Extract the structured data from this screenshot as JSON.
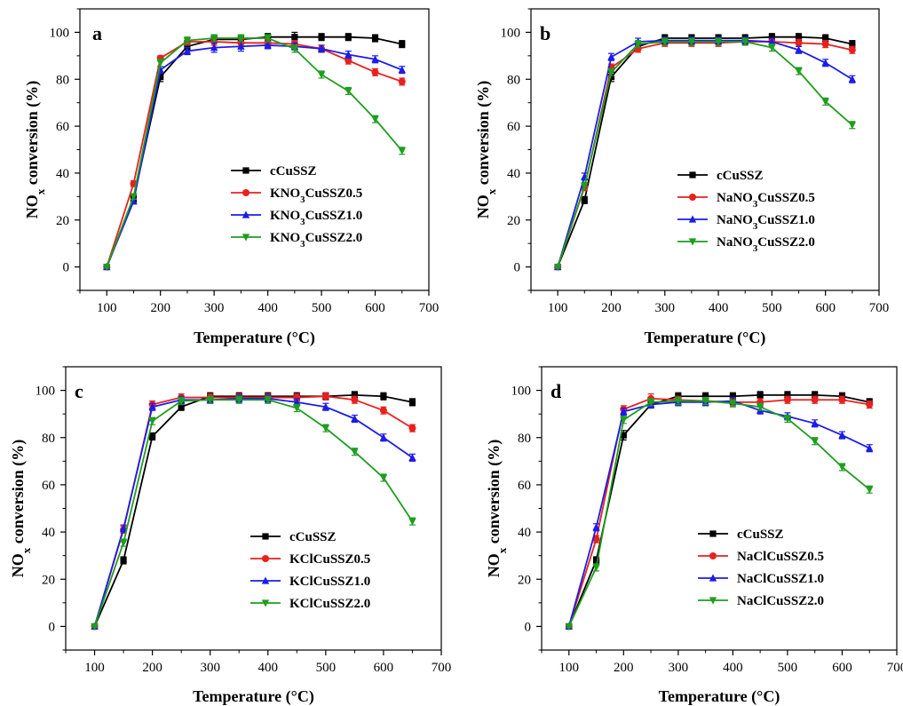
{
  "chart_data": [
    {
      "type": "line",
      "panel_label": "a",
      "xlabel": "Temperature (°C)",
      "ylabel": "NOx conversion (%)",
      "xlim": [
        50,
        700
      ],
      "ylim": [
        -10,
        110
      ],
      "x": [
        100,
        150,
        200,
        250,
        300,
        350,
        400,
        450,
        500,
        550,
        600,
        650
      ],
      "x_ticks": [
        100,
        200,
        300,
        400,
        500,
        600,
        700
      ],
      "y_ticks": [
        0,
        20,
        40,
        60,
        80,
        100
      ],
      "legend_position": "center-right",
      "series": [
        {
          "name": "cCuSSZ",
          "color": "#000000",
          "marker": "square",
          "values": [
            0,
            29,
            81,
            94,
            97,
            97,
            98,
            98,
            98,
            98,
            97.5,
            95
          ],
          "errors": [
            0.5,
            1.5,
            2,
            1.5,
            1.5,
            1.5,
            1.5,
            2,
            1.5,
            1.5,
            1.5,
            1.5
          ]
        },
        {
          "name": "KNO3CuSSZ0.5",
          "color": "#e8201e",
          "marker": "circle",
          "values": [
            0,
            35.5,
            89,
            96,
            96,
            95.5,
            95.5,
            95,
            93,
            88,
            83,
            79
          ],
          "errors": [
            0.5,
            1.2,
            1,
            1.5,
            1.5,
            1.5,
            1.5,
            1.5,
            1.5,
            1.5,
            1.5,
            1.5
          ]
        },
        {
          "name": "KNO3CuSSZ1.0",
          "color": "#1c1ce8",
          "marker": "triangle-up",
          "values": [
            0,
            28,
            84,
            92,
            93.5,
            94,
            94.5,
            94,
            93,
            90.5,
            88.5,
            84
          ],
          "errors": [
            0.5,
            1.2,
            1.5,
            1.5,
            2,
            2,
            1.5,
            1.5,
            1.5,
            1.5,
            1.5,
            1.5
          ]
        },
        {
          "name": "KNO3CuSSZ2.0",
          "color": "#1e9e1e",
          "marker": "triangle-down",
          "values": [
            0,
            30,
            87,
            96.5,
            97.5,
            97.5,
            97.5,
            93,
            82,
            75,
            63,
            49.5
          ],
          "errors": [
            0.5,
            1.2,
            1.5,
            1.5,
            1.5,
            1.5,
            1.5,
            1.5,
            1.5,
            1.5,
            1.5,
            1.5
          ]
        }
      ]
    },
    {
      "type": "line",
      "panel_label": "b",
      "xlabel": "Temperature (°C)",
      "ylabel": "NOx conversion (%)",
      "xlim": [
        50,
        700
      ],
      "ylim": [
        -10,
        110
      ],
      "x": [
        100,
        150,
        200,
        250,
        300,
        350,
        400,
        450,
        500,
        550,
        600,
        650
      ],
      "x_ticks": [
        100,
        200,
        300,
        400,
        500,
        600,
        700
      ],
      "y_ticks": [
        0,
        20,
        40,
        60,
        80,
        100
      ],
      "legend_position": "center-right",
      "series": [
        {
          "name": "cCuSSZ",
          "color": "#000000",
          "marker": "square",
          "values": [
            0,
            28.5,
            81,
            94,
            97.5,
            97.5,
            97.5,
            97.5,
            98,
            98,
            97.5,
            95
          ],
          "errors": [
            0.5,
            1.5,
            2,
            1.5,
            1.5,
            1.5,
            1.5,
            1.5,
            1.5,
            1.5,
            1.5,
            1.5
          ]
        },
        {
          "name": "NaNO3CuSSZ0.5",
          "color": "#e8201e",
          "marker": "circle",
          "values": [
            0,
            34,
            85,
            93,
            95.5,
            95.5,
            95.5,
            96,
            96,
            95.5,
            95,
            92.5
          ],
          "errors": [
            0.5,
            1.5,
            1.5,
            1.5,
            1.5,
            1.5,
            1.5,
            1.5,
            1.5,
            1.5,
            1.5,
            1.5
          ]
        },
        {
          "name": "NaNO3CuSSZ1.0",
          "color": "#1c1ce8",
          "marker": "triangle-up",
          "values": [
            0,
            38.5,
            89.5,
            96,
            96.5,
            96.5,
            96.5,
            96.5,
            96,
            92.5,
            87,
            80
          ],
          "errors": [
            0.5,
            1.5,
            1.5,
            1.5,
            1.5,
            1.5,
            1.5,
            1.5,
            1.5,
            1.5,
            1.5,
            1.5
          ]
        },
        {
          "name": "NaNO3CuSSZ2.0",
          "color": "#1e9e1e",
          "marker": "triangle-down",
          "values": [
            0,
            34.5,
            83,
            95,
            96,
            96,
            96,
            96,
            93.5,
            83.5,
            70.5,
            60.5
          ],
          "errors": [
            0.5,
            1.5,
            1.5,
            1.5,
            1.5,
            1.5,
            1.5,
            1.5,
            1.5,
            1.5,
            1.5,
            1.5
          ]
        }
      ]
    },
    {
      "type": "line",
      "panel_label": "c",
      "xlabel": "Temperature (°C)",
      "ylabel": "NOx conversion (%)",
      "xlim": [
        50,
        700
      ],
      "ylim": [
        -10,
        110
      ],
      "x": [
        100,
        150,
        200,
        250,
        300,
        350,
        400,
        450,
        500,
        550,
        600,
        650
      ],
      "x_ticks": [
        100,
        200,
        300,
        400,
        500,
        600,
        700
      ],
      "y_ticks": [
        0,
        20,
        40,
        60,
        80,
        100
      ],
      "legend_position": "center-right",
      "series": [
        {
          "name": "cCuSSZ",
          "color": "#000000",
          "marker": "square",
          "values": [
            0,
            28,
            80.5,
            93,
            97.5,
            97.5,
            97.5,
            97.5,
            97.5,
            98,
            97.5,
            95
          ],
          "errors": [
            0.5,
            1.5,
            1.5,
            1.5,
            1.5,
            1.5,
            1.5,
            1.5,
            1.5,
            1.5,
            1.5,
            1.5
          ]
        },
        {
          "name": "KClCuSSZ0.5",
          "color": "#e8201e",
          "marker": "circle",
          "values": [
            0,
            41,
            94,
            97,
            97,
            97,
            97,
            97,
            97.5,
            96,
            91.5,
            84
          ],
          "errors": [
            0.5,
            1.5,
            1.5,
            1.5,
            1.5,
            1.5,
            1.5,
            1.5,
            1.5,
            1.5,
            1.5,
            1.5
          ]
        },
        {
          "name": "KClCuSSZ1.0",
          "color": "#1c1ce8",
          "marker": "triangle-up",
          "values": [
            0,
            41.5,
            93,
            96,
            96,
            96.5,
            96.5,
            95,
            93,
            88,
            80,
            71.5
          ],
          "errors": [
            0.5,
            1.5,
            1.5,
            1.5,
            1.5,
            1.5,
            1.5,
            1.5,
            1.5,
            1.5,
            1.5,
            1.5
          ]
        },
        {
          "name": "KClCuSSZ2.0",
          "color": "#1e9e1e",
          "marker": "triangle-down",
          "values": [
            0,
            35.5,
            87,
            95.5,
            96,
            96,
            96,
            92.5,
            84,
            74,
            63,
            44.5
          ],
          "errors": [
            0.5,
            1.5,
            1.5,
            1.5,
            1.5,
            1.5,
            1.5,
            1.5,
            1.5,
            1.5,
            1.5,
            1.5
          ]
        }
      ]
    },
    {
      "type": "line",
      "panel_label": "d",
      "xlabel": "Temperature (°C)",
      "ylabel": "NOx conversion (%)",
      "xlim": [
        50,
        700
      ],
      "ylim": [
        -10,
        110
      ],
      "x": [
        100,
        150,
        200,
        250,
        300,
        350,
        400,
        450,
        500,
        550,
        600,
        650
      ],
      "x_ticks": [
        100,
        200,
        300,
        400,
        500,
        600,
        700
      ],
      "y_ticks": [
        0,
        20,
        40,
        60,
        80,
        100
      ],
      "legend_position": "center-right",
      "series": [
        {
          "name": "cCuSSZ",
          "color": "#000000",
          "marker": "square",
          "values": [
            0,
            28,
            81,
            94,
            97.5,
            97.5,
            97.5,
            98,
            98,
            98,
            97.5,
            95
          ],
          "errors": [
            0.5,
            1.5,
            2,
            1.5,
            1.5,
            1.5,
            1.5,
            1.5,
            1.5,
            1.5,
            1.5,
            1.5
          ]
        },
        {
          "name": "NaClCuSSZ0.5",
          "color": "#e8201e",
          "marker": "circle",
          "values": [
            0,
            37,
            92,
            96.5,
            96,
            95.5,
            95,
            95,
            96,
            96,
            96,
            94
          ],
          "errors": [
            0.5,
            1.5,
            1.5,
            2,
            1.5,
            1.5,
            1.5,
            1.5,
            1.5,
            1.5,
            1.5,
            1.5
          ]
        },
        {
          "name": "NaClCuSSZ1.0",
          "color": "#1c1ce8",
          "marker": "triangle-up",
          "values": [
            0,
            42,
            91,
            94,
            95,
            95,
            95.5,
            91.5,
            89,
            86,
            81,
            75.5
          ],
          "errors": [
            0.5,
            1.5,
            1.5,
            1.5,
            1.5,
            1.5,
            1.5,
            1.5,
            1.5,
            1.5,
            1.5,
            1.5
          ]
        },
        {
          "name": "NaClCuSSZ2.0",
          "color": "#1e9e1e",
          "marker": "triangle-down",
          "values": [
            0,
            25,
            87.5,
            95,
            95.5,
            95.5,
            94.5,
            93,
            88,
            78.5,
            67.5,
            58
          ],
          "errors": [
            0.5,
            1.5,
            1.5,
            1.5,
            1.5,
            1.5,
            1.5,
            1.5,
            1.5,
            1.5,
            1.5,
            1.5
          ]
        }
      ]
    }
  ]
}
